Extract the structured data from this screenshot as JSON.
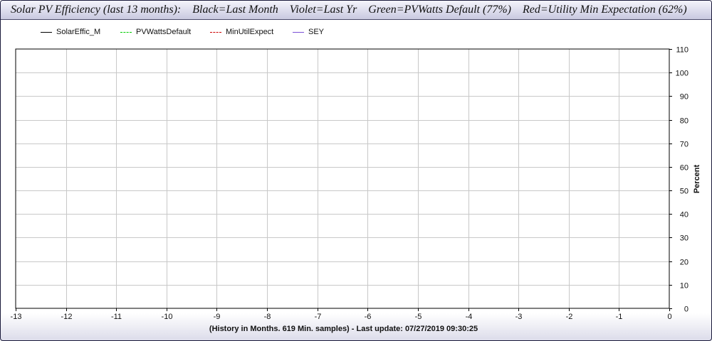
{
  "title": "Solar PV Efficiency (last 13 months):    Black=Last Month    Violet=Last Yr    Green=PVWatts Default (77%)    Red=Utility Min Expectation (62%)",
  "footer": "(History in Months. 619 Min. samples) - Last update: 07/27/2019 09:30:25",
  "colors": {
    "solareffic": "#000000",
    "pvwatts": "#00cc00",
    "minutil": "#cc0000",
    "sey": "#7a4fd6",
    "grid": "#c8c8c8",
    "axis": "#000000"
  },
  "chart_data": {
    "type": "line",
    "title": "Solar PV Efficiency (last 13 months):    Black=Last Month    Violet=Last Yr    Green=PVWatts Default (77%)    Red=Utility Min Expectation (62%)",
    "xlabel": "(History in Months. 619 Min. samples) - Last update: 07/27/2019 09:30:25",
    "ylabel": "Percent",
    "xlim": [
      -13,
      0
    ],
    "ylim": [
      0,
      110
    ],
    "x_ticks": [
      -13,
      -12,
      -11,
      -10,
      -9,
      -8,
      -7,
      -6,
      -5,
      -4,
      -3,
      -2,
      -1,
      0
    ],
    "y_ticks": [
      0,
      10,
      20,
      30,
      40,
      50,
      60,
      70,
      80,
      90,
      100,
      110
    ],
    "y_axis_side": "right",
    "grid": true,
    "legend_position": "top-left",
    "series": [
      {
        "name": "SolarEffic_M",
        "color": "#000000",
        "dash": "solid",
        "values": []
      },
      {
        "name": "PVWattsDefault",
        "color": "#00cc00",
        "dash": "dashed",
        "values": []
      },
      {
        "name": "MinUtilExpect",
        "color": "#cc0000",
        "dash": "dashed",
        "values": []
      },
      {
        "name": "SEY",
        "color": "#7a4fd6",
        "dash": "solid",
        "values": []
      }
    ]
  }
}
